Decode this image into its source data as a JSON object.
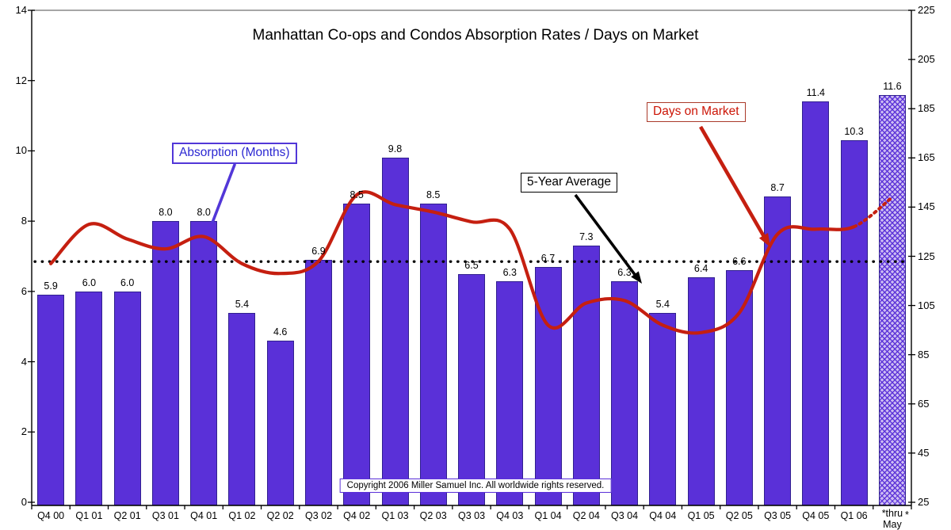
{
  "title": "Manhattan Co-ops and Condos Absorption Rates / Days on Market",
  "annotations": {
    "absorption_label": "Absorption (Months)",
    "five_year_avg_label": "5-Year Average",
    "days_on_market_label": "Days on Market"
  },
  "copyright": "Copyright 2006 Miller Samuel Inc.  All worldwide rights reserved.",
  "footnote_mark": "*",
  "colors": {
    "bar_fill": "#5a30d8",
    "bar_border": "#31208f",
    "hatched_bar_base": "#cdbdf2",
    "days_line": "#c51f10",
    "average_dotted_line": "#000000",
    "absorption_accent": "#5237d8",
    "frame": "#000000",
    "top_frame": "#888888"
  },
  "chart_data": {
    "type": "bar",
    "categories": [
      "Q4 00",
      "Q1 01",
      "Q2 01",
      "Q3 01",
      "Q4 01",
      "Q1 02",
      "Q2 02",
      "Q3 02",
      "Q4 02",
      "Q1 03",
      "Q2 03",
      "Q3 03",
      "Q4 03",
      "Q1 04",
      "Q2 04",
      "Q3 04",
      "Q4 04",
      "Q1 05",
      "Q2 05",
      "Q3 05",
      "Q4 05",
      "Q1 06",
      "*thru\nMay"
    ],
    "series": [
      {
        "name": "Absorption (Months)",
        "type": "bar",
        "axis": "left",
        "values": [
          5.9,
          6.0,
          6.0,
          8.0,
          8.0,
          5.4,
          4.6,
          6.9,
          8.5,
          9.8,
          8.5,
          6.5,
          6.3,
          6.7,
          7.3,
          6.3,
          5.4,
          6.4,
          6.6,
          8.7,
          11.4,
          10.3,
          11.6
        ],
        "last_bar_hatched": true
      },
      {
        "name": "Days on Market",
        "type": "line",
        "axis": "right",
        "values": [
          122,
          138,
          132,
          128,
          133,
          122,
          118,
          123,
          150,
          146,
          143,
          139,
          136,
          97,
          106,
          107,
          97,
          94,
          102,
          134,
          136,
          137,
          149
        ],
        "last_segment_projected": true
      }
    ],
    "five_year_average_months": 6.85,
    "left_axis": {
      "min": 0,
      "max": 14,
      "ticks": [
        14,
        12,
        10,
        8,
        6,
        4,
        2,
        0
      ]
    },
    "right_axis": {
      "min": 25,
      "max": 225,
      "ticks": [
        225,
        205,
        185,
        165,
        145,
        125,
        105,
        85,
        65,
        45,
        25
      ]
    },
    "grid": false,
    "legend_position": "callout-annotations"
  }
}
